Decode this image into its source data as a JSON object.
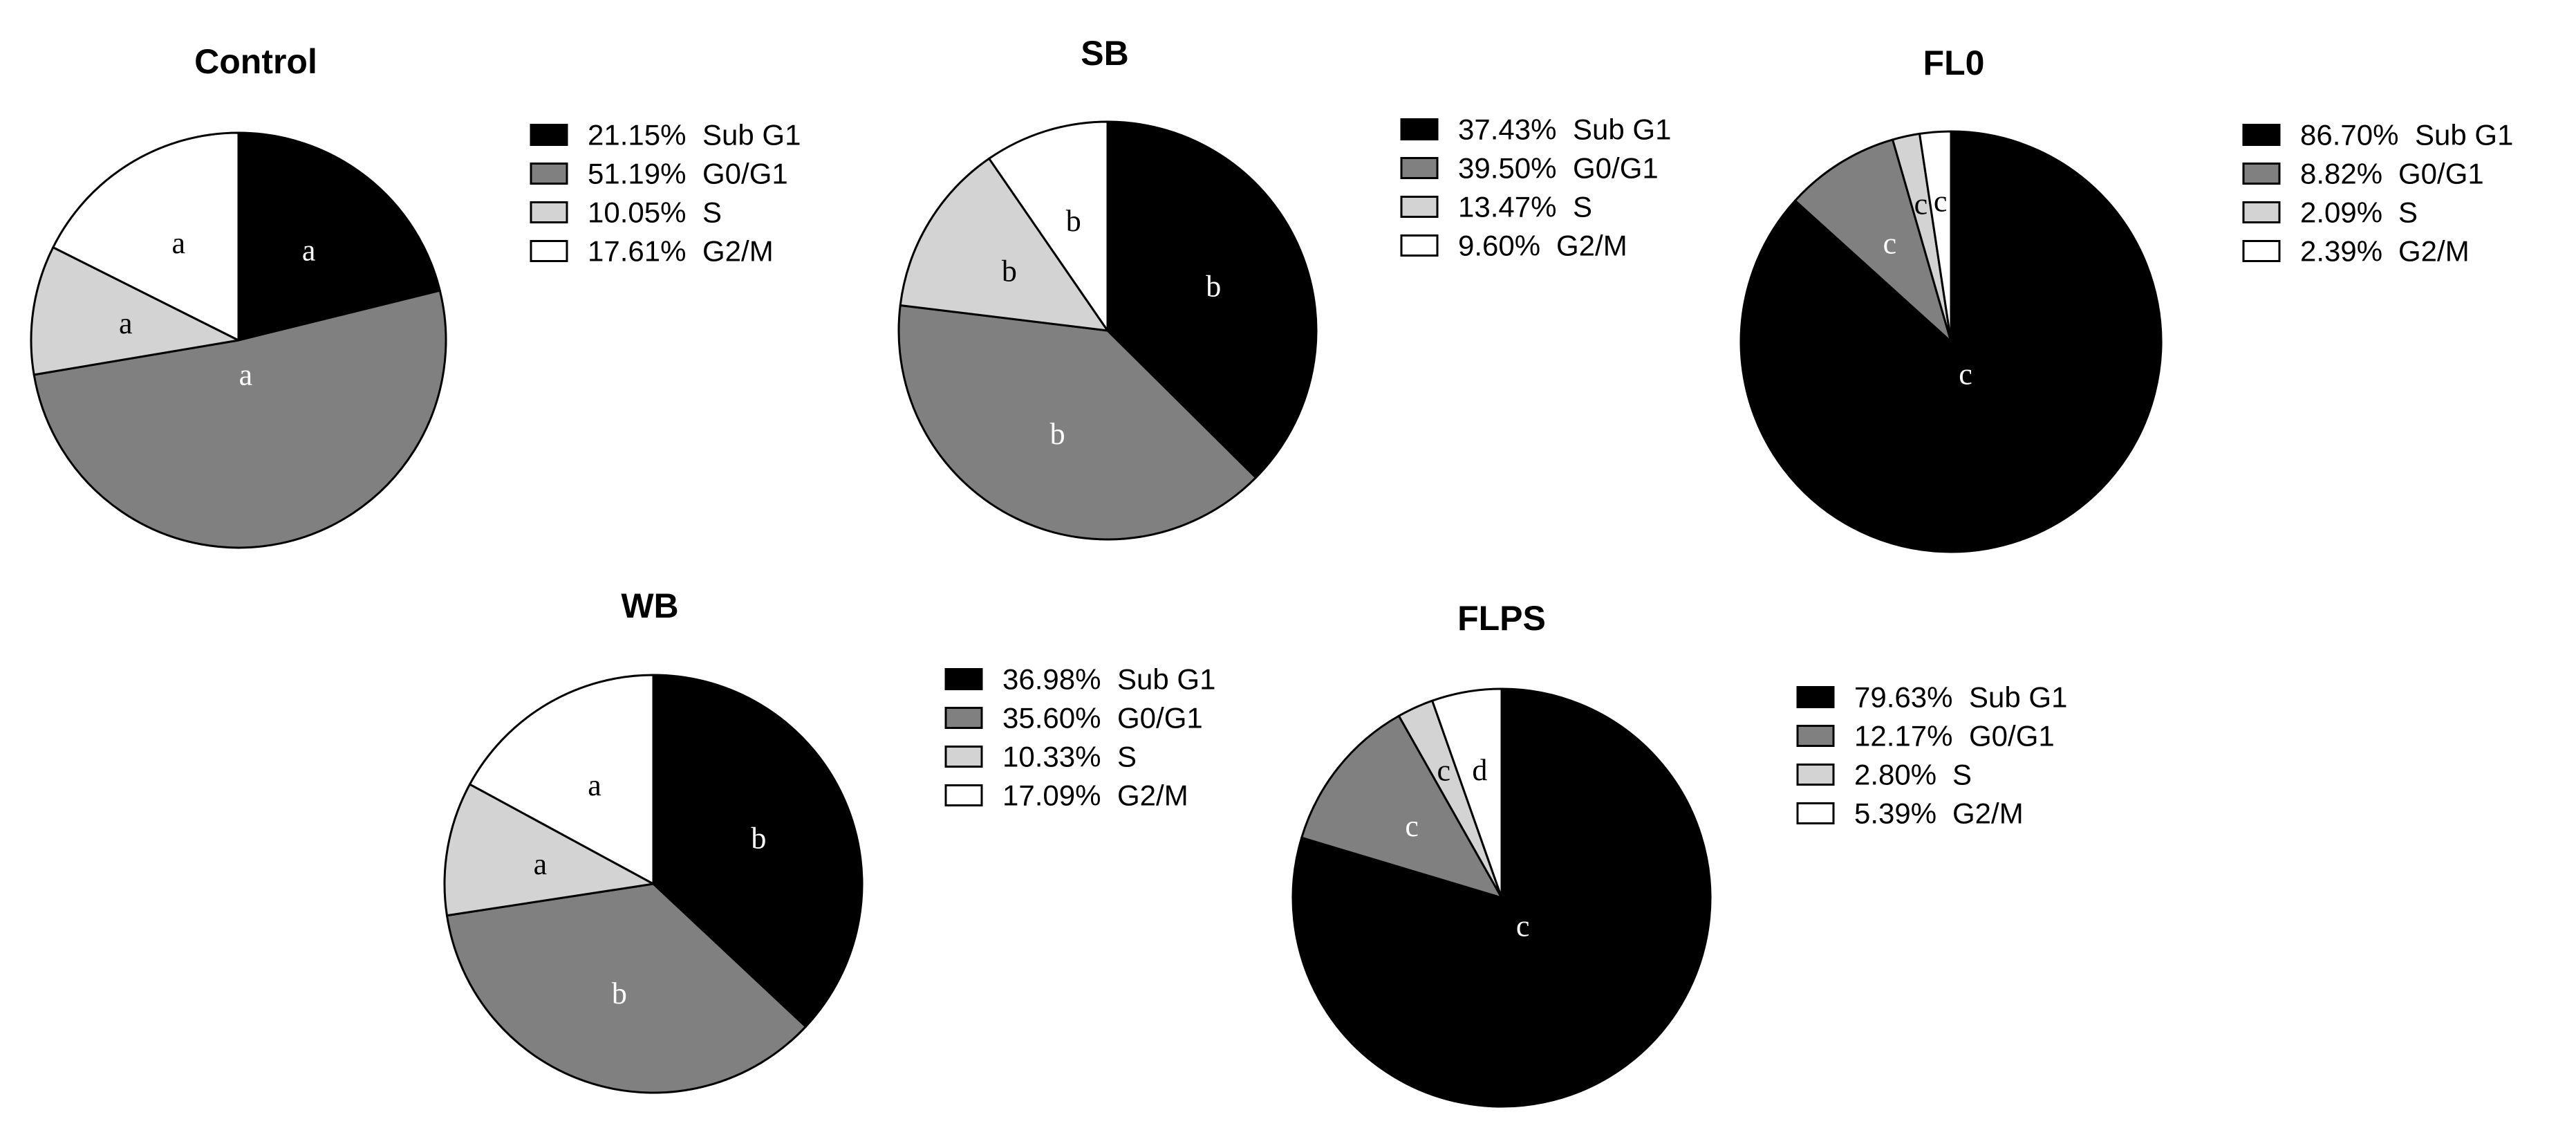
{
  "colors": {
    "Sub G1": "#000000",
    "G0/G1": "#808080",
    "S": "#d3d3d3",
    "G2/M": "#ffffff"
  },
  "chart_data": [
    {
      "type": "pie",
      "title": "Control",
      "slices": [
        {
          "category": "Sub G1",
          "value": 21.15,
          "display": "21.15%",
          "label": "a"
        },
        {
          "category": "G0/G1",
          "value": 51.19,
          "display": "51.19%",
          "label": "a"
        },
        {
          "category": "S",
          "value": 10.05,
          "display": "10.05%",
          "label": "a"
        },
        {
          "category": "G2/M",
          "value": 17.61,
          "display": "17.61%",
          "label": "a"
        }
      ]
    },
    {
      "type": "pie",
      "title": "SB",
      "slices": [
        {
          "category": "Sub G1",
          "value": 37.43,
          "display": "37.43%",
          "label": "b"
        },
        {
          "category": "G0/G1",
          "value": 39.5,
          "display": "39.50%",
          "label": "b"
        },
        {
          "category": "S",
          "value": 13.47,
          "display": "13.47%",
          "label": "b"
        },
        {
          "category": "G2/M",
          "value": 9.6,
          "display": "9.60%",
          "label": "b"
        }
      ]
    },
    {
      "type": "pie",
      "title": "FL0",
      "slices": [
        {
          "category": "Sub G1",
          "value": 86.7,
          "display": "86.70%",
          "label": "c"
        },
        {
          "category": "G0/G1",
          "value": 8.82,
          "display": "8.82%",
          "label": "c"
        },
        {
          "category": "S",
          "value": 2.09,
          "display": "2.09%",
          "label": "c"
        },
        {
          "category": "G2/M",
          "value": 2.39,
          "display": "2.39%",
          "label": "c"
        }
      ]
    },
    {
      "type": "pie",
      "title": "WB",
      "slices": [
        {
          "category": "Sub G1",
          "value": 36.98,
          "display": "36.98%",
          "label": "b"
        },
        {
          "category": "G0/G1",
          "value": 35.6,
          "display": "35.60%",
          "label": "b"
        },
        {
          "category": "S",
          "value": 10.33,
          "display": "10.33%",
          "label": "a"
        },
        {
          "category": "G2/M",
          "value": 17.09,
          "display": "17.09%",
          "label": "a"
        }
      ]
    },
    {
      "type": "pie",
      "title": "FLPS",
      "slices": [
        {
          "category": "Sub G1",
          "value": 79.63,
          "display": "79.63%",
          "label": "c"
        },
        {
          "category": "G0/G1",
          "value": 12.17,
          "display": "12.17%",
          "label": "c"
        },
        {
          "category": "S",
          "value": 2.8,
          "display": "2.80%",
          "label": "c"
        },
        {
          "category": "G2/M",
          "value": 5.39,
          "display": "5.39%",
          "label": "d"
        }
      ]
    }
  ]
}
